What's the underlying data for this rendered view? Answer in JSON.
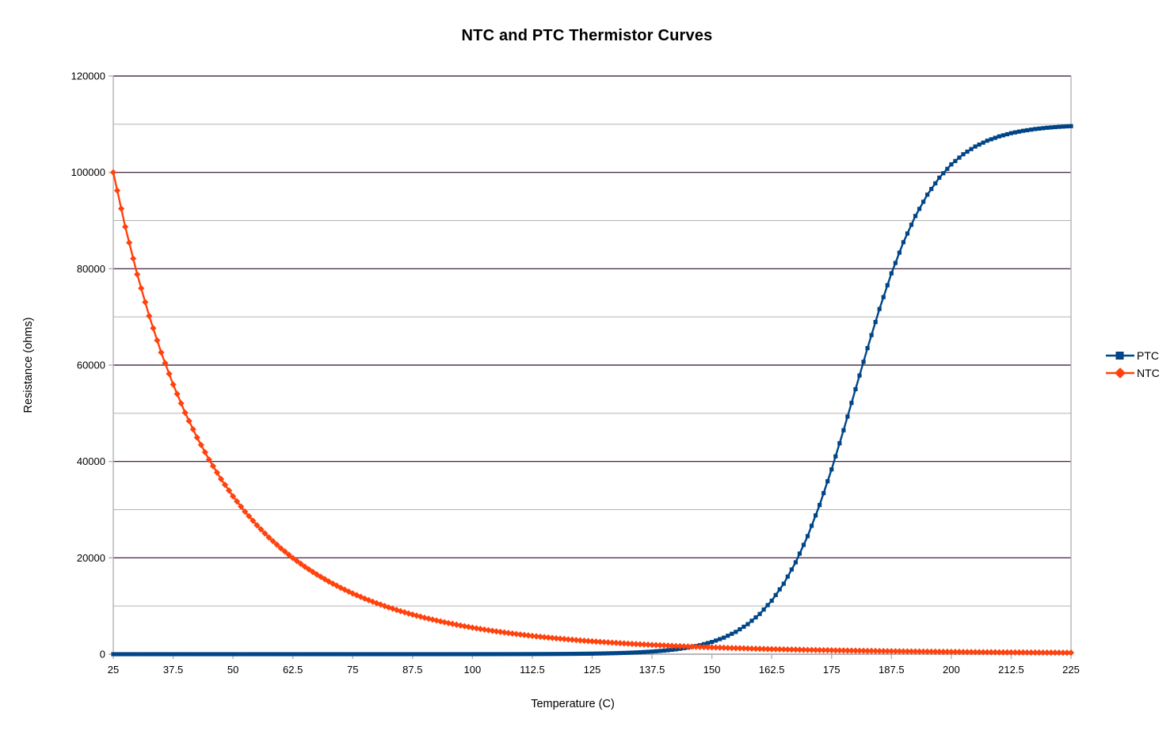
{
  "chart_data": {
    "type": "line",
    "title": "NTC and PTC Thermistor Curves",
    "xlabel": "Temperature (C)",
    "ylabel": "Resistance (ohms)",
    "xlim": [
      25,
      225
    ],
    "ylim": [
      0,
      120000
    ],
    "xticks": [
      "25",
      "37.5",
      "50",
      "62.5",
      "75",
      "87.5",
      "100",
      "112.5",
      "125",
      "137.5",
      "150",
      "162.5",
      "175",
      "187.5",
      "200",
      "212.5",
      "225"
    ],
    "yticks": [
      "0",
      "20000",
      "40000",
      "60000",
      "80000",
      "100000",
      "120000"
    ],
    "y_major_step": 20000,
    "y_minor_step": 10000,
    "grid": true,
    "legend_position": "right",
    "x": [
      25,
      27.5,
      30,
      32.5,
      35,
      37.5,
      40,
      42.5,
      45,
      47.5,
      50,
      52.5,
      55,
      57.5,
      60,
      62.5,
      65,
      67.5,
      70,
      72.5,
      75,
      77.5,
      80,
      82.5,
      85,
      87.5,
      90,
      92.5,
      95,
      97.5,
      100,
      102.5,
      105,
      107.5,
      110,
      112.5,
      115,
      117.5,
      120,
      122.5,
      125,
      127.5,
      130,
      132.5,
      135,
      137.5,
      140,
      142.5,
      145,
      147.5,
      150,
      152.5,
      155,
      157.5,
      160,
      162.5,
      165,
      167.5,
      170,
      172.5,
      175,
      177.5,
      180,
      182.5,
      185,
      187.5,
      190,
      192.5,
      195,
      197.5,
      200,
      202.5,
      205,
      207.5,
      210,
      212.5,
      215,
      217.5,
      220,
      222.5,
      225
    ],
    "series": [
      {
        "name": "PTC",
        "color": "#004586",
        "marker": "square",
        "values": [
          0,
          0,
          0,
          0,
          0,
          0,
          0,
          0,
          0,
          0,
          0,
          0,
          0,
          0,
          0,
          0,
          0,
          0,
          0,
          0,
          0,
          0,
          0,
          1,
          1,
          1,
          1,
          2,
          3,
          4,
          5,
          7,
          9,
          13,
          17,
          24,
          33,
          44,
          61,
          83,
          113,
          155,
          212,
          289,
          395,
          539,
          736,
          1004,
          1367,
          1861,
          2527,
          3426,
          4629,
          6232,
          8344,
          11096,
          14625,
          19064,
          24497,
          30955,
          38352,
          46475,
          55000,
          63525,
          71649,
          79046,
          85503,
          90941,
          95375,
          98904,
          101656,
          103768,
          105371,
          106575,
          107472,
          108139,
          108632,
          108996,
          109264,
          109460,
          109604
        ]
      },
      {
        "name": "NTC",
        "color": "#FF420E",
        "marker": "diamond",
        "values": [
          100000,
          88699,
          78830,
          70195,
          62622,
          55970,
          50117,
          44953,
          40389,
          36349,
          32768,
          29583,
          26752,
          24227,
          21974,
          19960,
          18157,
          16539,
          15086,
          13779,
          12601,
          11539,
          10579,
          9712,
          8926,
          8213,
          7570,
          6993,
          6444,
          5956,
          5510,
          5103,
          4731,
          4391,
          4079,
          3792,
          3530,
          3288,
          3066,
          2861,
          2672,
          2498,
          2337,
          2189,
          2051,
          1924,
          1805,
          1696,
          1594,
          1500,
          1412,
          1330,
          1254,
          1183,
          1116,
          1054,
          997,
          943,
          892,
          845,
          801,
          759,
          720,
          684,
          649,
          617,
          587,
          558,
          532,
          506,
          482,
          460,
          438,
          418,
          399,
          381,
          365,
          348,
          333,
          319,
          305
        ]
      }
    ],
    "colors": {
      "grid_major": "#2b0a2b",
      "grid_minor": "#b3b3b3",
      "axis": "#b3b3b3",
      "text": "#000000",
      "background": "#ffffff"
    }
  },
  "legend": {
    "items": [
      {
        "label": "PTC"
      },
      {
        "label": "NTC"
      }
    ]
  }
}
